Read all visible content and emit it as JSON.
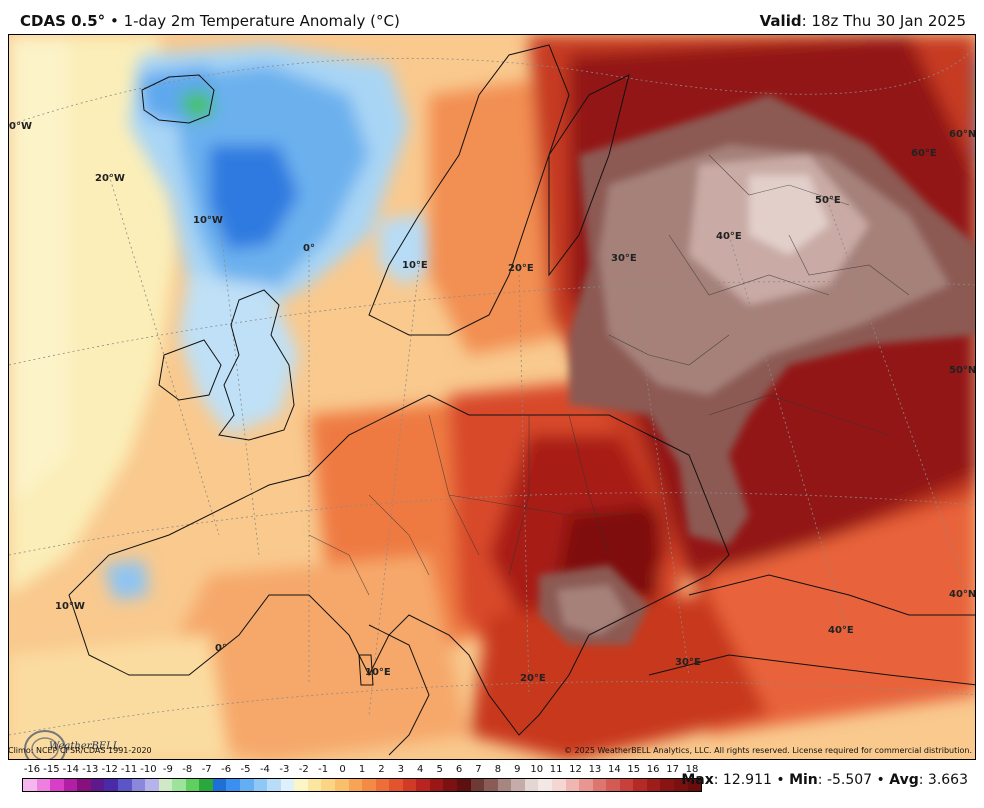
{
  "header": {
    "model": "CDAS 0.5",
    "degree_symbol": "°",
    "bullet": "•",
    "description": "1-day 2m Temperature Anomaly (°C)",
    "valid_label": "Valid",
    "valid_time": ": 18z Thu 30 Jan 2025"
  },
  "map_labels": {
    "lon_0w_top": "0°W",
    "lon_20w": "20°W",
    "lon_10w_top": "10°W",
    "lon_0": "0°",
    "lon_10e_top": "10°E",
    "lon_20e_top": "20°E",
    "lon_30e_top": "30°E",
    "lon_40e_top": "40°E",
    "lon_50e": "50°E",
    "lon_60e": "60°E",
    "lat_60n": "60°N",
    "lat_50n": "50°N",
    "lat_40n": "40°N",
    "lon_10w_bot": "10°W",
    "lon_0_bot": "0°",
    "lon_10e_bot": "10°E",
    "lon_20e_bot": "20°E",
    "lon_30e_bot": "30°E",
    "lon_40e_bot": "40°E"
  },
  "footer": {
    "climo": "Climo: NCEP CFSR/CDAS 1991-2020",
    "copyright": "© 2025 WeatherBELL Analytics, LLC. All rights reserved. License required for commercial distribution.",
    "logo_text": "WeatherBELL"
  },
  "legend": {
    "ticks": [
      "-16",
      "-15",
      "-14",
      "-13",
      "-12",
      "-11",
      "-10",
      "-9",
      "-8",
      "-7",
      "-6",
      "-5",
      "-4",
      "-3",
      "-2",
      "-1",
      "0",
      "1",
      "2",
      "3",
      "4",
      "5",
      "6",
      "7",
      "8",
      "9",
      "10",
      "11",
      "12",
      "13",
      "14",
      "15",
      "16",
      "17",
      "18"
    ],
    "colors": [
      "#f6b6ee",
      "#ee7fe0",
      "#d93fc6",
      "#b21ea4",
      "#86107e",
      "#5e1a8c",
      "#4a2aa8",
      "#5b55c8",
      "#8b88dc",
      "#b6b2ec",
      "#cfe9c7",
      "#9ee39b",
      "#5fcf61",
      "#2aa83b",
      "#1f6fd8",
      "#3a8ff0",
      "#64aef4",
      "#8fc8f6",
      "#b8ddf8",
      "#def0fb",
      "#fbf5c8",
      "#fbe6a0",
      "#fbd484",
      "#fabf6a",
      "#f7a455",
      "#f38a46",
      "#ee6e3a",
      "#e45330",
      "#d23a26",
      "#b9251e",
      "#9b1716",
      "#7d1010",
      "#5e1010",
      "#6e3a36",
      "#8a5c56",
      "#a78580",
      "#c6aca8",
      "#e4d6d2",
      "#f3e8e4",
      "#f6d6d2",
      "#f0b6b0",
      "#e89690",
      "#de7670",
      "#d45a54",
      "#c7403a",
      "#b52a26",
      "#9e1c1a",
      "#8a1414",
      "#7a1010",
      "#6a0c0c"
    ],
    "stats_max_label": "Max",
    "stats_max": ": 12.911",
    "stats_min_label": "Min",
    "stats_min": ": -5.507",
    "stats_avg_label": "Avg",
    "stats_avg": ": 3.663",
    "stats_sep": "•"
  }
}
